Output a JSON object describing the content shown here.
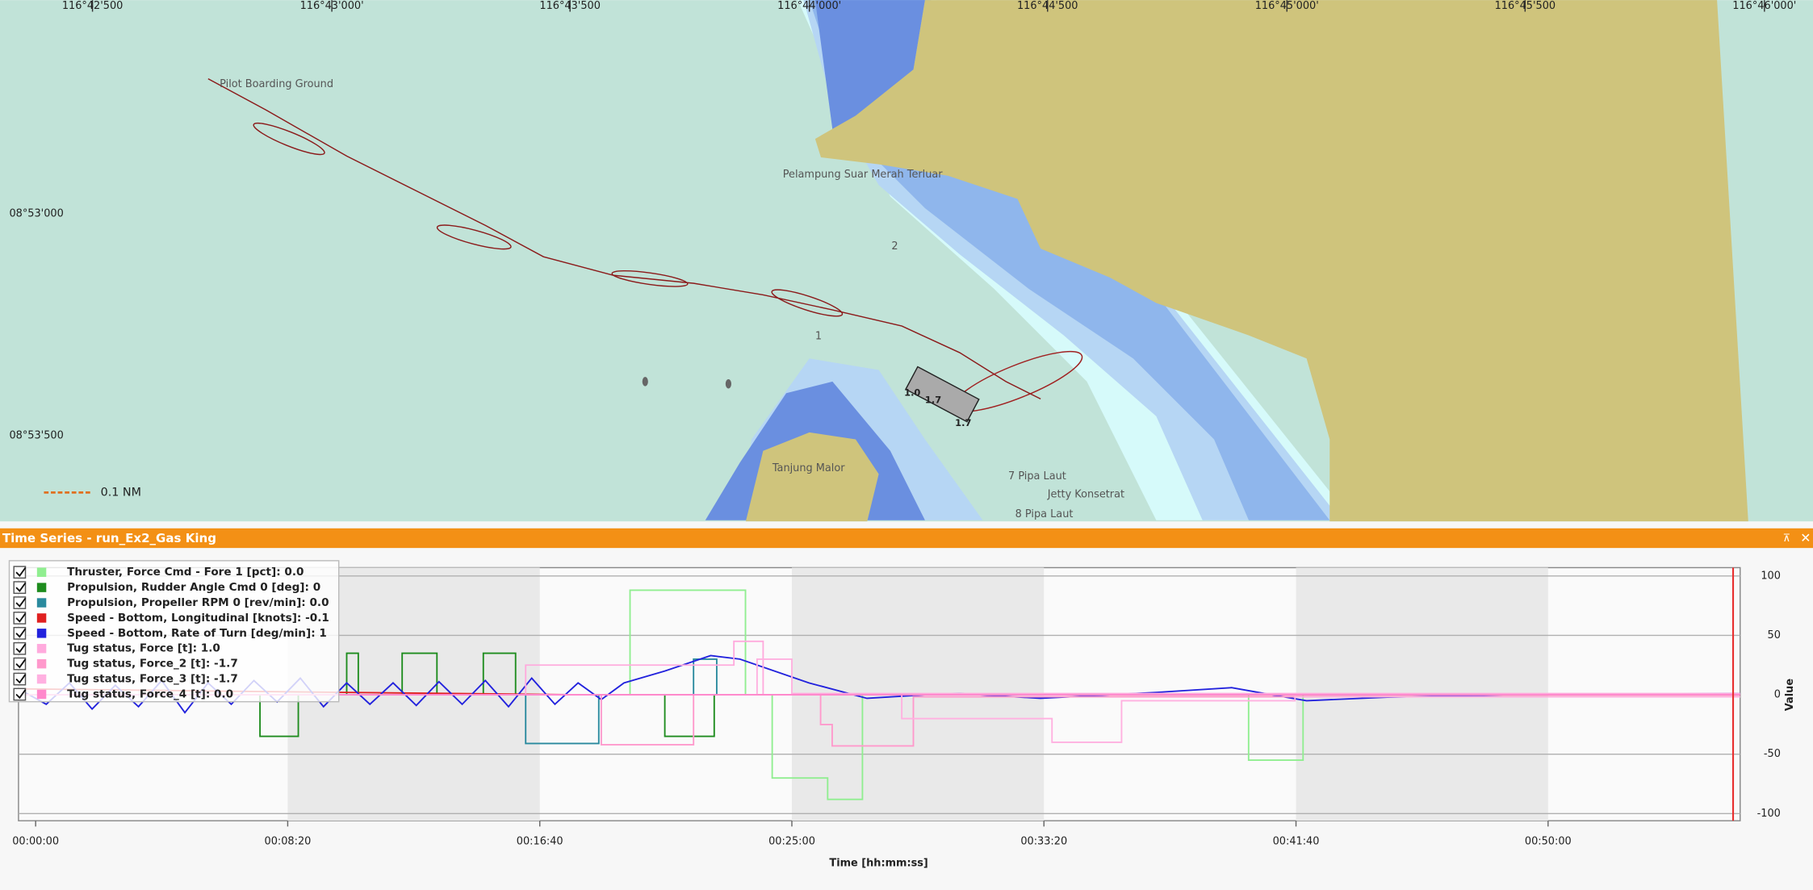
{
  "map": {
    "lon_labels": [
      "116°42'500",
      "116°43'000'",
      "116°43'500",
      "116°44'000'",
      "116°44'500",
      "116°45'000'",
      "116°45'500",
      "116°46'000'"
    ],
    "lat_labels": [
      "08°53'000",
      "08°53'500"
    ],
    "places": [
      "Pilot Boarding Ground",
      "Pelampung Suar Merah Terluar",
      "2",
      "1",
      "Tanjung Malor",
      "7 Pipa Laut",
      "Jetty Konsetrat",
      "8 Pipa Laut"
    ],
    "ship_labels": [
      "1.0",
      "1.7",
      "1.7"
    ],
    "scale": "0.1 NM"
  },
  "panel": {
    "title": "Time Series - run_Ex2_Gas King"
  },
  "chart_data": {
    "type": "line",
    "xlabel": "Time [hh:mm:ss]",
    "ylabel": "Value",
    "xlim": [
      -34,
      3381
    ],
    "ylim": [
      -106,
      107
    ],
    "xticks": [
      {
        "value": 0,
        "label": "00:00:00"
      },
      {
        "value": 500,
        "label": "00:08:20"
      },
      {
        "value": 1000,
        "label": "00:16:40"
      },
      {
        "value": 1500,
        "label": "00:25:00"
      },
      {
        "value": 2000,
        "label": "00:33:20"
      },
      {
        "value": 2500,
        "label": "00:41:40"
      },
      {
        "value": 3000,
        "label": "00:50:00"
      }
    ],
    "yticks": [
      100,
      50,
      0,
      -50,
      -100
    ],
    "grid": true,
    "cursor": 3367,
    "cursor_color": "#e83030",
    "series": [
      {
        "name": "Thruster, Force Cmd - Fore 1 [pct]: 0.0",
        "color": "#90ee90",
        "x": [
          -34,
          1179,
          1179,
          1408,
          1408,
          1461,
          1461,
          1571,
          1571,
          1640,
          1640,
          2406,
          2406,
          2514,
          2514,
          3381
        ],
        "values": [
          0,
          0,
          88,
          88,
          0,
          0,
          -70,
          -70,
          -88,
          -88,
          0,
          0,
          -55,
          -55,
          0,
          0
        ]
      },
      {
        "name": "Propulsion, Rudder Angle Cmd 0 [deg]: 0",
        "color": "#1e8c1e",
        "x": [
          -34,
          445,
          445,
          521,
          521,
          617,
          617,
          640,
          640,
          727,
          727,
          796,
          796,
          888,
          888,
          952,
          952,
          1248,
          1248,
          1346,
          1346,
          3381
        ],
        "values": [
          0,
          0,
          -35,
          -35,
          0,
          0,
          35,
          35,
          0,
          0,
          35,
          35,
          0,
          0,
          35,
          35,
          0,
          0,
          -35,
          -35,
          0,
          0
        ]
      },
      {
        "name": "Propulsion, Propeller RPM 0 [rev/min]: 0.0",
        "color": "#2a8a9e",
        "x": [
          -34,
          972,
          972,
          1117,
          1117,
          1305,
          1305,
          1351,
          1351,
          3381
        ],
        "values": [
          0,
          0,
          -41,
          -41,
          0,
          0,
          30,
          30,
          0,
          0
        ]
      },
      {
        "name": "Speed - Bottom, Longitudinal [knots]: -0.1",
        "color": "#e02020",
        "x": [
          -34,
          388,
          1076,
          3381
        ],
        "values": [
          5,
          3,
          0,
          -0.1
        ]
      },
      {
        "name": "Speed - Bottom, Rate of Turn [deg/min]: 1",
        "color": "#2222dd",
        "x": [
          -34,
          21,
          67,
          112,
          158,
          204,
          250,
          296,
          342,
          388,
          433,
          479,
          525,
          571,
          617,
          663,
          709,
          755,
          800,
          846,
          892,
          938,
          984,
          1030,
          1076,
          1122,
          1167,
          1248,
          1339,
          1397,
          1534,
          1649,
          1764,
          1833,
          1993,
          2131,
          2222,
          2372,
          2452,
          2521,
          2681,
          2911,
          3381
        ],
        "values": [
          5,
          -8,
          10,
          -12,
          8,
          -10,
          12,
          -15,
          10,
          -8,
          12,
          -6,
          14,
          -10,
          10,
          -8,
          10,
          -9,
          11,
          -8,
          12,
          -10,
          14,
          -8,
          10,
          -4,
          10,
          20,
          33,
          30,
          10,
          -3,
          0,
          1,
          -3,
          0,
          2,
          6,
          0,
          -5,
          -2,
          0,
          1
        ]
      },
      {
        "name": "Tug status, Force [t]: 1.0",
        "color": "#ffaadd",
        "x": [
          -34,
          972,
          972,
          1385,
          1385,
          1443,
          1443,
          1500,
          1500,
          3381
        ],
        "values": [
          0,
          0,
          25,
          25,
          45,
          45,
          0,
          0,
          1,
          1
        ]
      },
      {
        "name": "Tug status, Force_2 [t]: -1.7",
        "color": "#ff99cc",
        "x": [
          -34,
          1122,
          1122,
          1305,
          1305,
          1557,
          1557,
          1580,
          1580,
          1741,
          1741,
          3381
        ],
        "values": [
          0,
          0,
          -42,
          -42,
          0,
          0,
          -25,
          -25,
          -43,
          -43,
          -1.7,
          -1.7
        ]
      },
      {
        "name": "Tug status, Force_3 [t]: -1.7",
        "color": "#ffb0e0",
        "x": [
          -34,
          1431,
          1431,
          1500,
          1500,
          1718,
          1718,
          2016,
          2016,
          2154,
          2154,
          2498,
          2498,
          3381
        ],
        "values": [
          0,
          0,
          30,
          30,
          0,
          0,
          -20,
          -20,
          -40,
          -40,
          -5,
          -5,
          -1.7,
          -1.7
        ]
      },
      {
        "name": "Tug status, Force_4 [t]: 0.0",
        "color": "#ff88cc",
        "x": [
          -34,
          3381
        ],
        "values": [
          0,
          0
        ]
      }
    ]
  }
}
